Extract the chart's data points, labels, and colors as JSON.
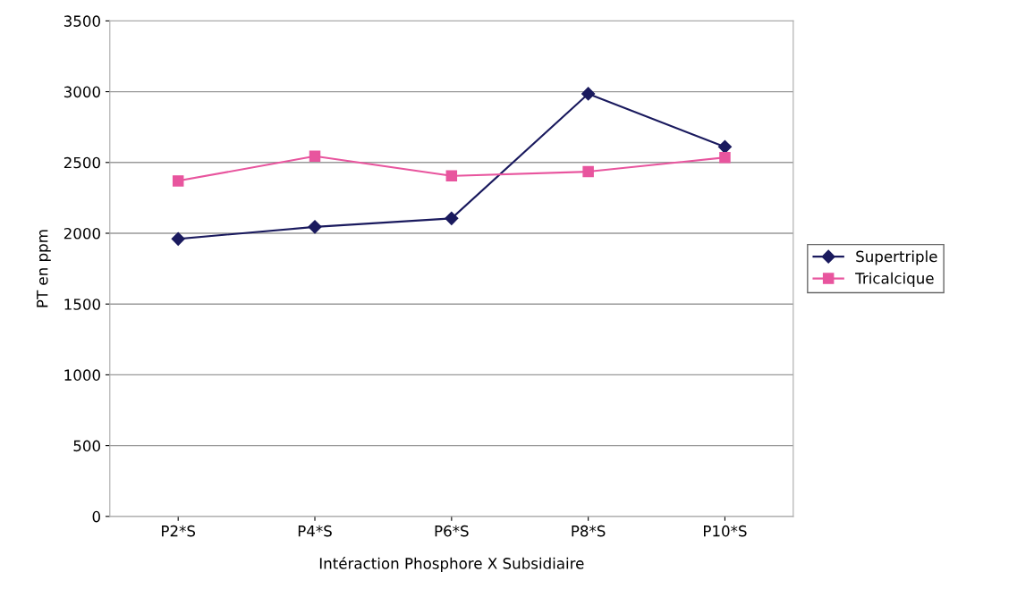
{
  "chart_data": {
    "type": "line",
    "xlabel": "Intéraction Phosphore X Subsidiaire",
    "ylabel": "PT en ppm",
    "categories": [
      "P2*S",
      "P4*S",
      "P6*S",
      "P8*S",
      "P10*S"
    ],
    "series": [
      {
        "name": "Supertriple",
        "color": "#1a1a5e",
        "marker": "diamond",
        "values": [
          1960,
          2045,
          2105,
          2985,
          2610
        ]
      },
      {
        "name": "Tricalcique",
        "color": "#e8559e",
        "marker": "square",
        "values": [
          2370,
          2545,
          2405,
          2435,
          2535
        ]
      }
    ],
    "ylim": [
      0,
      3500
    ],
    "yticks": [
      0,
      500,
      1000,
      1500,
      2000,
      2500,
      3000,
      3500
    ],
    "grid": "y",
    "legend": "right"
  }
}
